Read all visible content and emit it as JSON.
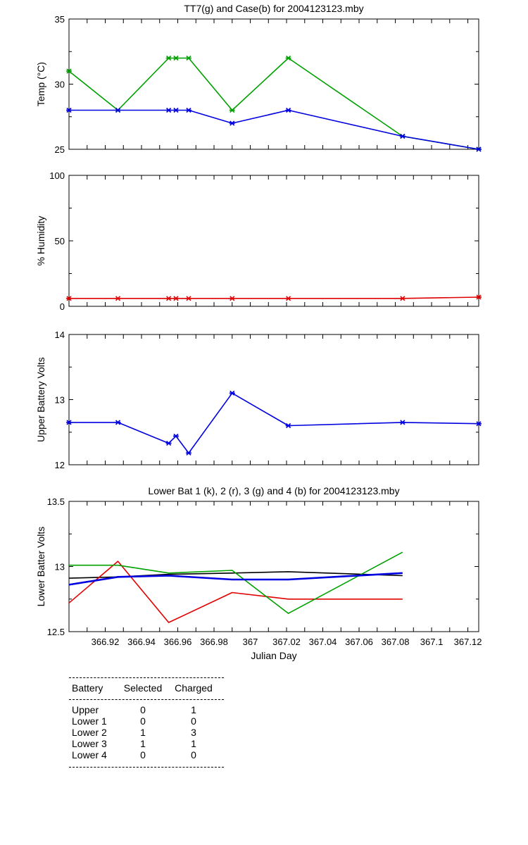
{
  "chart_data": [
    {
      "type": "line",
      "title": "TT7(g) and Case(b) for 2004123123.mby",
      "xlabel": "",
      "ylabel": "Temp  (°C)",
      "xlim": [
        366.9,
        367.126
      ],
      "ylim": [
        25,
        35
      ],
      "yticks": [
        "25",
        "30",
        "35"
      ],
      "x": [
        366.9,
        366.927,
        366.955,
        366.959,
        366.966,
        366.99,
        367.021,
        367.084,
        367.126
      ],
      "series": [
        {
          "name": "TT7",
          "color": "#00a000",
          "markers": true,
          "values": [
            31,
            28,
            32,
            32,
            32,
            28,
            32,
            26,
            25
          ]
        },
        {
          "name": "Case",
          "color": "#0000e0",
          "markers": true,
          "values": [
            28,
            28,
            28,
            28,
            28,
            27,
            28,
            26,
            25
          ]
        }
      ]
    },
    {
      "type": "line",
      "title": "",
      "xlabel": "",
      "ylabel": "% Humidity",
      "xlim": [
        366.9,
        367.126
      ],
      "ylim": [
        0,
        100
      ],
      "yticks": [
        "0",
        "50",
        "100"
      ],
      "x": [
        366.9,
        366.927,
        366.955,
        366.959,
        366.966,
        366.99,
        367.021,
        367.084,
        367.126
      ],
      "series": [
        {
          "name": "Humidity",
          "color": "#e00000",
          "markers": true,
          "values": [
            6,
            6,
            6,
            6,
            6,
            6,
            6,
            6,
            7
          ]
        }
      ]
    },
    {
      "type": "line",
      "title": "",
      "xlabel": "",
      "ylabel": "Upper Battery Volts",
      "xlim": [
        366.9,
        367.126
      ],
      "ylim": [
        12,
        14
      ],
      "yticks": [
        "12",
        "13",
        "14"
      ],
      "x": [
        366.9,
        366.927,
        366.955,
        366.959,
        366.966,
        366.99,
        367.021,
        367.084,
        367.126
      ],
      "series": [
        {
          "name": "Upper",
          "color": "#0000e0",
          "markers": true,
          "values": [
            12.65,
            12.65,
            12.33,
            12.44,
            12.18,
            13.1,
            12.6,
            12.65,
            12.63
          ]
        }
      ]
    },
    {
      "type": "line",
      "title": "Lower Bat 1 (k), 2 (r), 3 (g) and 4 (b) for 2004123123.mby",
      "xlabel": "Julian Day",
      "ylabel": "Lower Batter Volts",
      "xlim": [
        366.9,
        367.126
      ],
      "ylim": [
        12.5,
        13.5
      ],
      "yticks": [
        "12.5",
        "13",
        "13.5"
      ],
      "xticks": [
        "366.92",
        "366.94",
        "366.96",
        "366.98",
        "367",
        "367.02",
        "367.04",
        "367.06",
        "367.08",
        "367.1",
        "367.12"
      ],
      "x": [
        366.9,
        366.927,
        366.955,
        366.99,
        367.021,
        367.084
      ],
      "series": [
        {
          "name": "Lower 1",
          "color": "#000000",
          "values": [
            12.91,
            12.92,
            12.94,
            12.95,
            12.96,
            12.93
          ]
        },
        {
          "name": "Lower 2",
          "color": "#e00000",
          "values": [
            12.72,
            13.04,
            12.57,
            12.8,
            12.75,
            12.75
          ]
        },
        {
          "name": "Lower 3",
          "color": "#00a000",
          "values": [
            13.01,
            13.01,
            12.95,
            12.97,
            12.64,
            13.11
          ]
        },
        {
          "name": "Lower 4",
          "color": "#0000e0",
          "bold": true,
          "values": [
            12.86,
            12.92,
            12.93,
            12.9,
            12.9,
            12.95
          ]
        }
      ]
    }
  ],
  "table": {
    "headers": [
      "Battery",
      "Selected",
      "Charged"
    ],
    "rows": [
      [
        "Upper",
        "0",
        "1"
      ],
      [
        "Lower 1",
        "0",
        "0"
      ],
      [
        "Lower 2",
        "1",
        "3"
      ],
      [
        "Lower 3",
        "1",
        "1"
      ],
      [
        "Lower 4",
        "0",
        "0"
      ]
    ]
  }
}
